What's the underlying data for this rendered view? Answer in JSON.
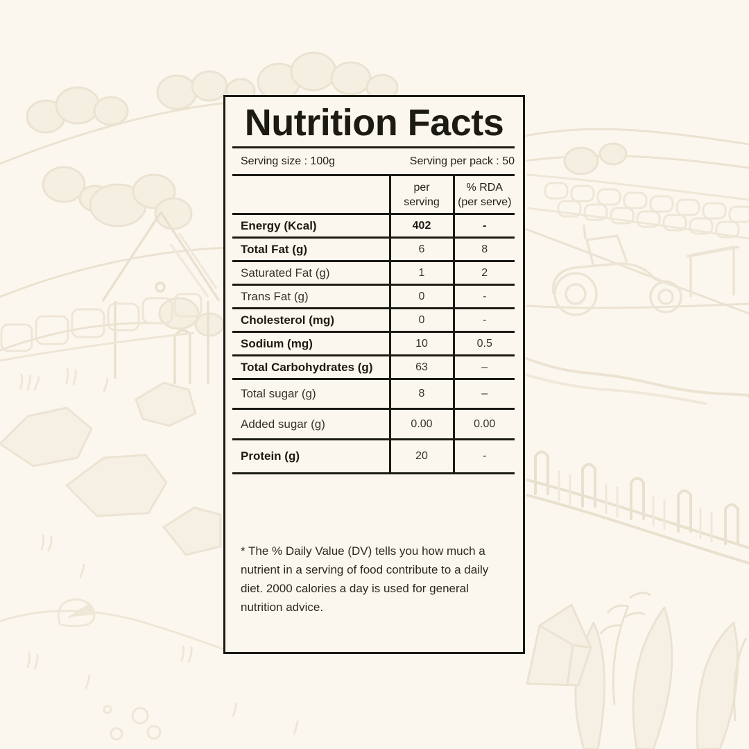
{
  "colors": {
    "background": "#fcf7ee",
    "ink": "#1b1a13"
  },
  "panel": {
    "title": "Nutrition Facts",
    "serving_size": "Serving size : 100g",
    "serving_per_pack": "Serving per pack : 50",
    "footnote": "* The % Daily Value (DV) tells you how much a\nnutrient in a serving of food contribute to a daily\ndiet. 2000 calories a day is used for general\nnutrition advice."
  },
  "table": {
    "header": {
      "nutrient": "",
      "per_serving": "per\nserving",
      "rda": "% RDA\n(per serve)"
    },
    "rows": [
      {
        "label": "Energy (Kcal)",
        "per_serving": "402",
        "rda": "-",
        "bold": true,
        "values_bold": true
      },
      {
        "label": "Total Fat (g)",
        "per_serving": "6",
        "rda": "8",
        "bold": true
      },
      {
        "label": "Saturated Fat (g)",
        "per_serving": "1",
        "rda": "2",
        "bold": false
      },
      {
        "label": "Trans Fat (g)",
        "per_serving": "0",
        "rda": "-",
        "bold": false
      },
      {
        "label": "Cholesterol (mg)",
        "per_serving": "0",
        "rda": "-",
        "bold": true
      },
      {
        "label": "Sodium (mg)",
        "per_serving": "10",
        "rda": "0.5",
        "bold": true
      },
      {
        "label": "Total Carbohydrates (g)",
        "per_serving": "63",
        "rda": "–",
        "bold": true
      },
      {
        "label": "Total sugar (g)",
        "per_serving": "8",
        "rda": "–",
        "bold": false
      },
      {
        "label": "Added sugar (g)",
        "per_serving": "0.00",
        "rda": "0.00",
        "bold": false
      },
      {
        "label": "Protein (g)",
        "per_serving": "20",
        "rda": "-",
        "bold": true,
        "indent": true
      }
    ]
  },
  "background_illustration": "faint hand-drawn farm landscape: rolling hills, trees, barn, stone walls, tractor, fence and plants"
}
